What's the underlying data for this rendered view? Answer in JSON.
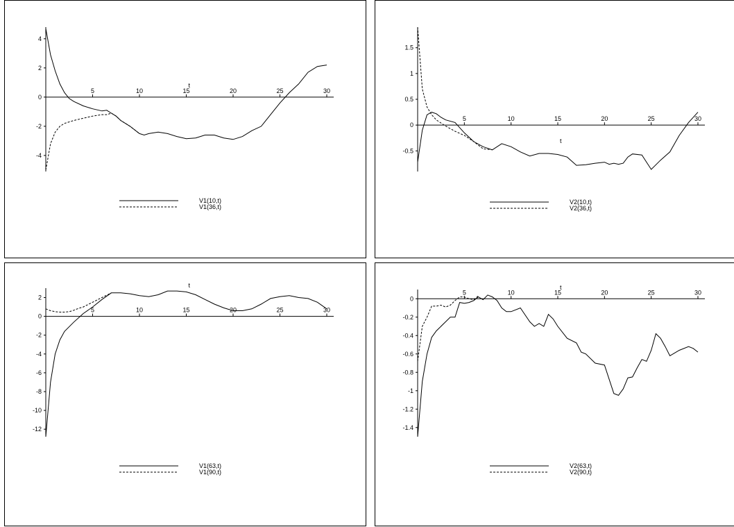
{
  "chart_data": [
    {
      "type": "line",
      "xlabel": "t",
      "xlim": [
        0,
        30
      ],
      "ylim": [
        -5.1,
        4.8
      ],
      "xticks": [
        5,
        10,
        15,
        20,
        25,
        30
      ],
      "yticks": [
        -4,
        -2,
        0,
        2,
        4
      ],
      "series": [
        {
          "name": "V1(10,t)",
          "dash": "solid",
          "x": [
            0,
            0.5,
            1,
            1.5,
            2,
            2.5,
            3,
            4,
            5,
            6,
            6.5,
            7,
            7.5,
            8,
            9,
            10,
            10.5,
            11,
            12,
            13,
            14,
            15,
            16,
            17,
            18,
            19,
            20,
            21,
            22,
            23,
            24,
            25,
            26,
            27,
            28,
            29,
            30
          ],
          "y": [
            4.7,
            2.9,
            1.8,
            0.9,
            0.3,
            -0.1,
            -0.3,
            -0.6,
            -0.8,
            -0.95,
            -0.9,
            -1.1,
            -1.3,
            -1.6,
            -2.0,
            -2.5,
            -2.6,
            -2.5,
            -2.4,
            -2.5,
            -2.7,
            -2.85,
            -2.8,
            -2.6,
            -2.6,
            -2.8,
            -2.9,
            -2.7,
            -2.3,
            -2.0,
            -1.2,
            -0.4,
            0.3,
            0.9,
            1.7,
            2.1,
            2.2
          ]
        },
        {
          "name": "V1(36,t)",
          "dash": "dashed",
          "x": [
            0,
            0.5,
            1,
            1.5,
            2,
            3,
            4,
            5,
            6,
            6.5,
            7,
            7.5,
            8,
            9,
            10
          ],
          "y": [
            -5.0,
            -3.2,
            -2.4,
            -2.0,
            -1.8,
            -1.6,
            -1.45,
            -1.3,
            -1.2,
            -1.2,
            -1.1,
            -1.3,
            -1.6,
            -2.0,
            -2.5
          ]
        }
      ]
    },
    {
      "type": "line",
      "xlabel": "t",
      "xlim": [
        0,
        30
      ],
      "ylim": [
        -0.9,
        1.9
      ],
      "xticks": [
        5,
        10,
        15,
        20,
        25,
        30
      ],
      "yticks": [
        -0.5,
        0,
        0.5,
        1,
        1.5
      ],
      "ytick_labels": [
        "-0.5",
        "0",
        "0.5",
        "1",
        "1.5"
      ],
      "series": [
        {
          "name": "V2(10,t)",
          "dash": "solid",
          "x": [
            0,
            0.5,
            1,
            1.5,
            2,
            2.5,
            3,
            4,
            5,
            6,
            7,
            8,
            9,
            10,
            11,
            12,
            13,
            14,
            15,
            16,
            17,
            18,
            19,
            20,
            20.5,
            21,
            21.5,
            22,
            22.5,
            23,
            24,
            25,
            26,
            27,
            28,
            29,
            30
          ],
          "y": [
            -0.72,
            -0.1,
            0.2,
            0.25,
            0.22,
            0.15,
            0.1,
            0.05,
            -0.15,
            -0.32,
            -0.42,
            -0.48,
            -0.36,
            -0.42,
            -0.52,
            -0.6,
            -0.55,
            -0.55,
            -0.57,
            -0.62,
            -0.78,
            -0.77,
            -0.74,
            -0.72,
            -0.76,
            -0.74,
            -0.76,
            -0.74,
            -0.62,
            -0.56,
            -0.58,
            -0.86,
            -0.68,
            -0.52,
            -0.2,
            0.05,
            0.25
          ]
        },
        {
          "name": "V2(36,t)",
          "dash": "dashed",
          "x": [
            0,
            0.5,
            1,
            1.5,
            2,
            3,
            4,
            5,
            6,
            7,
            8
          ],
          "y": [
            1.9,
            0.7,
            0.35,
            0.2,
            0.1,
            -0.02,
            -0.12,
            -0.2,
            -0.32,
            -0.46,
            -0.48
          ]
        }
      ]
    },
    {
      "type": "line",
      "xlabel": "t",
      "xlim": [
        0,
        30
      ],
      "ylim": [
        -12.8,
        3.0
      ],
      "xticks": [
        5,
        10,
        15,
        20,
        25,
        30
      ],
      "yticks": [
        -12,
        -10,
        -8,
        -6,
        -4,
        -2,
        0,
        2
      ],
      "ytick_labels": [
        "-12",
        "-10",
        "-8",
        "-6",
        "-4",
        "-2",
        "0",
        "2"
      ],
      "series": [
        {
          "name": "V1(63,t)",
          "dash": "solid",
          "x": [
            0,
            0.5,
            1,
            1.5,
            2,
            3,
            4,
            5,
            6,
            7,
            8,
            9,
            10,
            11,
            12,
            13,
            14,
            15,
            16,
            17,
            18,
            19,
            20,
            21,
            22,
            23,
            24,
            25,
            26,
            27,
            28,
            29,
            30
          ],
          "y": [
            -12.8,
            -7.0,
            -4.0,
            -2.5,
            -1.6,
            -0.6,
            0.3,
            1.0,
            1.8,
            2.5,
            2.5,
            2.4,
            2.2,
            2.1,
            2.3,
            2.7,
            2.7,
            2.6,
            2.3,
            1.8,
            1.3,
            0.9,
            0.6,
            0.6,
            0.8,
            1.3,
            1.9,
            2.1,
            2.2,
            2.0,
            1.9,
            1.5,
            0.8
          ]
        },
        {
          "name": "V1(90,t)",
          "dash": "dashed",
          "x": [
            0,
            0.5,
            1,
            1.5,
            2,
            2.5,
            3,
            3.5,
            4,
            5,
            6,
            7
          ],
          "y": [
            0.8,
            0.6,
            0.5,
            0.45,
            0.45,
            0.5,
            0.65,
            0.85,
            1.0,
            1.5,
            2.0,
            2.5
          ]
        }
      ]
    },
    {
      "type": "line",
      "xlabel": "t",
      "xlim": [
        0,
        30
      ],
      "ylim": [
        -1.5,
        0.1
      ],
      "xticks": [
        5,
        10,
        15,
        20,
        25,
        30
      ],
      "yticks": [
        -1.4,
        -1.2,
        -1,
        -0.8,
        -0.6,
        -0.4,
        -0.2,
        0
      ],
      "ytick_labels": [
        "-1.4",
        "-1.2",
        "-1",
        "-0.8",
        "-0.6",
        "-0.4",
        "-0.2",
        "0"
      ],
      "series": [
        {
          "name": "V2(63,t)",
          "dash": "solid",
          "x": [
            0,
            0.5,
            1,
            1.5,
            2,
            3,
            3.5,
            4,
            4.5,
            5,
            5.5,
            6,
            6.5,
            7,
            7.5,
            8,
            8.5,
            9,
            9.5,
            10,
            11,
            12,
            12.5,
            13,
            13.5,
            14,
            14.5,
            15,
            16,
            17,
            17.5,
            18,
            19,
            20,
            21,
            21.5,
            22,
            22.5,
            23,
            23.5,
            24,
            24.5,
            25,
            25.5,
            26,
            26.5,
            27,
            28,
            29,
            29.5,
            30
          ],
          "y": [
            -1.5,
            -0.9,
            -0.6,
            -0.42,
            -0.35,
            -0.25,
            -0.2,
            -0.2,
            -0.04,
            -0.05,
            -0.04,
            -0.02,
            0.02,
            -0.01,
            0.04,
            0.02,
            -0.02,
            -0.1,
            -0.14,
            -0.14,
            -0.1,
            -0.25,
            -0.3,
            -0.27,
            -0.3,
            -0.17,
            -0.22,
            -0.3,
            -0.43,
            -0.48,
            -0.58,
            -0.6,
            -0.7,
            -0.72,
            -1.03,
            -1.05,
            -0.98,
            -0.86,
            -0.85,
            -0.75,
            -0.66,
            -0.68,
            -0.56,
            -0.38,
            -0.43,
            -0.52,
            -0.62,
            -0.56,
            -0.52,
            -0.54,
            -0.58
          ]
        },
        {
          "name": "V2(90,t)",
          "dash": "dashed",
          "x": [
            0,
            0.5,
            1,
            1.5,
            2,
            2.5,
            3,
            3.5,
            4,
            4.5,
            5,
            5.5,
            6,
            6.5
          ],
          "y": [
            -0.68,
            -0.3,
            -0.2,
            -0.08,
            -0.08,
            -0.07,
            -0.09,
            -0.07,
            -0.02,
            0.02,
            0.02,
            0.0,
            -0.01,
            0.03
          ]
        }
      ]
    }
  ]
}
